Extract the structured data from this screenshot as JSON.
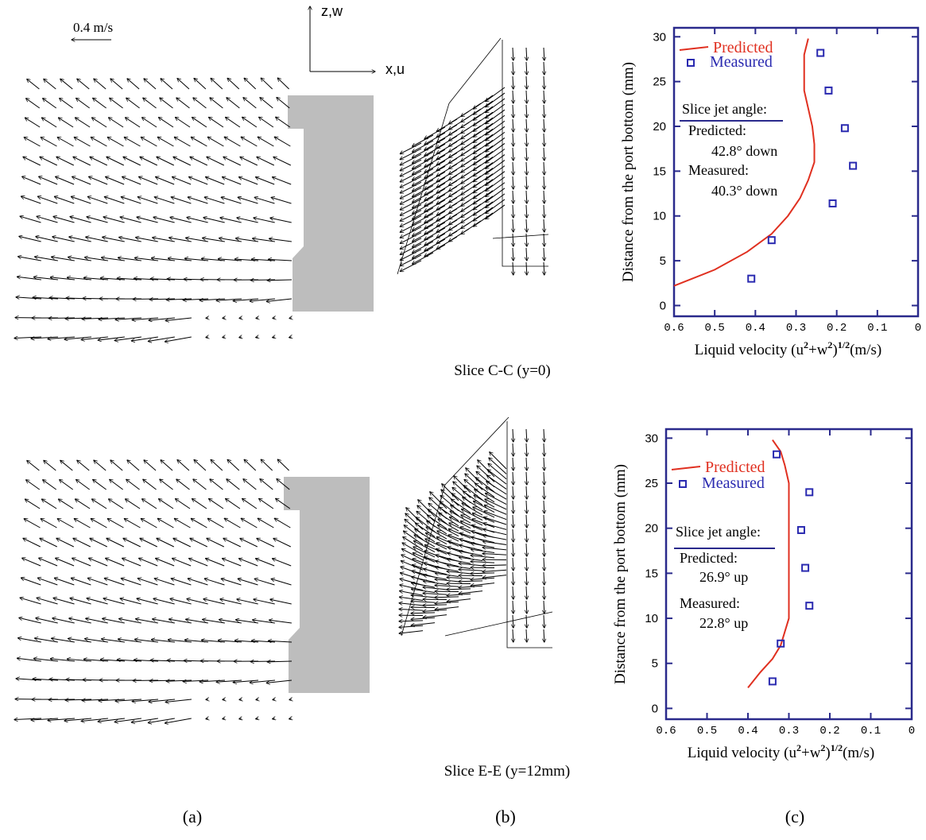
{
  "labels": {
    "scale": "0.4 m/s",
    "z_axis": "z,w",
    "x_axis": "x,u",
    "slice_top": "Slice C-C (y=0)",
    "slice_bottom": "Slice E-E (y=12mm)",
    "panel_a": "(a)",
    "panel_b": "(b)",
    "panel_c": "(c)"
  },
  "chart_data": [
    {
      "type": "line",
      "xlim": [
        0.6,
        0
      ],
      "ylim": [
        -1.2,
        31
      ],
      "xticks": [
        0.6,
        0.5,
        0.4,
        0.3,
        0.2,
        0.1,
        0
      ],
      "yticks": [
        0,
        5,
        10,
        15,
        20,
        25,
        30
      ],
      "y_label": "Distance from the port bottom (mm)",
      "x_label": [
        "Liquid velocity  (u",
        "2",
        "+w",
        "2",
        ")",
        "1/2",
        "(m/s)"
      ],
      "frame_color": "#2a2a8c",
      "legend": "upper left",
      "series": [
        {
          "name": "Predicted",
          "color": "#e03020",
          "mode": "line",
          "x": [
            0.6,
            0.5,
            0.42,
            0.36,
            0.32,
            0.29,
            0.27,
            0.255,
            0.255,
            0.26,
            0.27,
            0.28,
            0.28,
            0.28,
            0.27
          ],
          "values": [
            2.2,
            4,
            6,
            8,
            10,
            12,
            14,
            16,
            18,
            20,
            22,
            24,
            26,
            28,
            29.8
          ]
        },
        {
          "name": "Measured",
          "color": "#2a2ab0",
          "mode": "markers",
          "x": [
            0.41,
            0.36,
            0.21,
            0.16,
            0.18,
            0.22,
            0.24
          ],
          "values": [
            3,
            7.3,
            11.4,
            15.6,
            19.8,
            24,
            28.2
          ]
        }
      ],
      "annotations": [
        "Slice jet angle:",
        "Predicted:",
        "42.8° down",
        "Measured:",
        "40.3° down"
      ]
    },
    {
      "type": "line",
      "xlim": [
        0.6,
        0
      ],
      "ylim": [
        -1.2,
        31
      ],
      "xticks": [
        0.6,
        0.5,
        0.4,
        0.3,
        0.2,
        0.1,
        0
      ],
      "yticks": [
        0,
        5,
        10,
        15,
        20,
        25,
        30
      ],
      "y_label": "Distance from the port bottom (mm)",
      "x_label": [
        "Liquid velocity  (u",
        "2",
        "+w",
        "2",
        ")",
        "1/2",
        "(m/s)"
      ],
      "frame_color": "#2a2a8c",
      "legend": "upper left",
      "series": [
        {
          "name": "Predicted",
          "color": "#e03020",
          "mode": "line",
          "x": [
            0.4,
            0.37,
            0.34,
            0.32,
            0.31,
            0.3,
            0.3,
            0.3,
            0.3,
            0.3,
            0.31,
            0.32,
            0.34
          ],
          "values": [
            2.3,
            4,
            5.5,
            7,
            8.5,
            10,
            15,
            20,
            23,
            25,
            27,
            28.5,
            29.8
          ]
        },
        {
          "name": "Measured",
          "color": "#2a2ab0",
          "mode": "markers",
          "x": [
            0.34,
            0.32,
            0.25,
            0.26,
            0.27,
            0.25,
            0.33
          ],
          "values": [
            3,
            7.2,
            11.4,
            15.6,
            19.8,
            24,
            28.2
          ]
        }
      ],
      "annotations": [
        "Slice jet angle:",
        "Predicted:",
        "26.9° up",
        "Measured:",
        "22.8° up"
      ]
    }
  ]
}
